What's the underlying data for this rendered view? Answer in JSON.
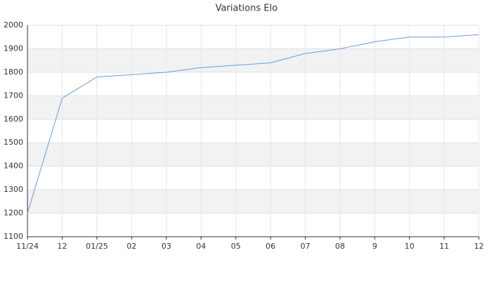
{
  "chart_data": {
    "type": "line",
    "title": "Variations Elo",
    "categories": [
      "11/24",
      "12",
      "01/25",
      "02",
      "03",
      "04",
      "05",
      "06",
      "07",
      "08",
      "9",
      "10",
      "11",
      "12"
    ],
    "series": [
      {
        "name": "Elo",
        "color": "#6a9be0",
        "values": [
          1200,
          1690,
          1780,
          1790,
          1800,
          1820,
          1830,
          1840,
          1880,
          1900,
          1930,
          1950,
          1950,
          1960
        ]
      }
    ],
    "ylim": [
      1100,
      2000
    ],
    "yticks": [
      1100,
      1200,
      1300,
      1400,
      1500,
      1600,
      1700,
      1800,
      1900,
      2000
    ],
    "grid": true,
    "band_color": "#f2f2f2"
  }
}
